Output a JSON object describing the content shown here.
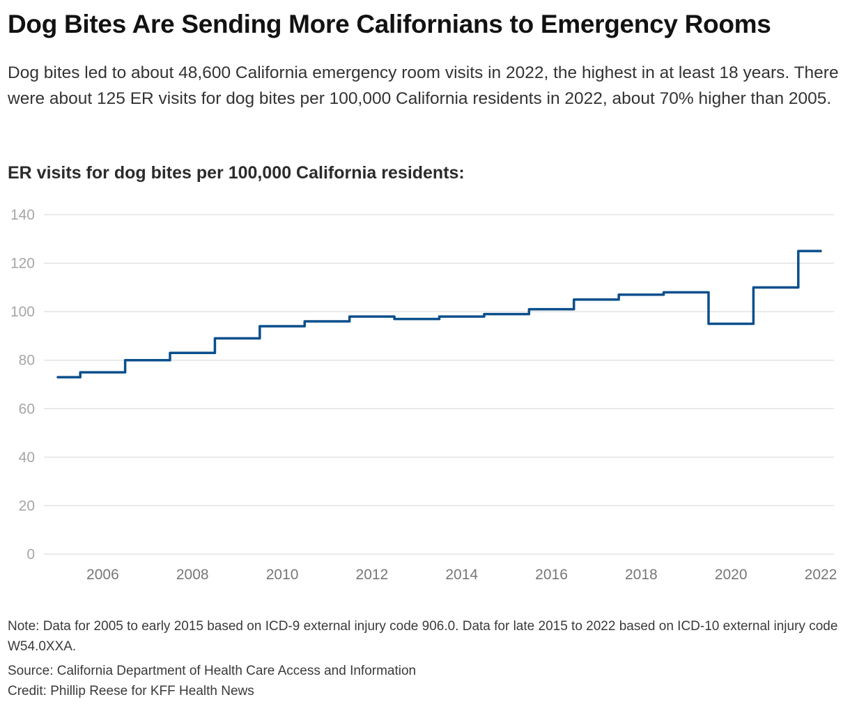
{
  "header": {
    "title": "Dog Bites Are Sending More Californians to Emergency Rooms",
    "description": "Dog bites led to about 48,600 California emergency room visits in 2022, the highest in at least 18 years. There were about 125 ER visits for dog bites per 100,000 California residents in 2022, about 70% higher than 2005."
  },
  "footer": {
    "note": "Note: Data for 2005 to early 2015 based on ICD-9 external injury code 906.0. Data for late 2015 to 2022 based on ICD-10 external injury code W54.0XXA.",
    "source": "Source: California Department of Health Care Access and Information",
    "credit": "Credit: Phillip Reese for KFF Health News"
  },
  "chart_data": {
    "type": "line",
    "interpolation": "step",
    "title": "ER visits for dog bites per 100,000 California residents:",
    "xlabel": "",
    "ylabel": "",
    "x": [
      2005,
      2006,
      2007,
      2008,
      2009,
      2010,
      2011,
      2012,
      2013,
      2014,
      2015,
      2016,
      2017,
      2018,
      2019,
      2020,
      2021,
      2022
    ],
    "series": [
      {
        "name": "ER visits for dog bites per 100,000 residents",
        "color": "#0a4f8c",
        "values": [
          73,
          75,
          80,
          83,
          89,
          94,
          96,
          98,
          97,
          98,
          99,
          101,
          105,
          107,
          108,
          95,
          110,
          125
        ]
      }
    ],
    "xlim": [
      2005,
      2022
    ],
    "ylim": [
      0,
      140
    ],
    "yticks": [
      0,
      20,
      40,
      60,
      80,
      100,
      120,
      140
    ],
    "xticks": [
      2006,
      2008,
      2010,
      2012,
      2014,
      2016,
      2018,
      2020,
      2022
    ],
    "grid": "horizontal",
    "legend": "none"
  }
}
